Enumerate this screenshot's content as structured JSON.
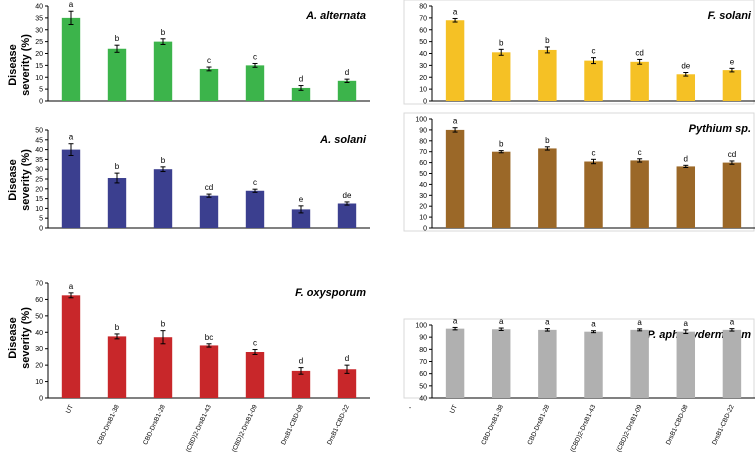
{
  "figure": {
    "ylabel_line1": "Disease",
    "ylabel_line2": "severity (%)",
    "categories": [
      "UT",
      "CBD-DrsB1-38",
      "CBD-DrsB1-28",
      "(CBD)2-DrsB1-43",
      "(CBD)2-DrsB1-09",
      "DrsB1-CBD-08",
      "DrsB1-CBD-22"
    ]
  },
  "chart_data": [
    {
      "id": "a-alternata",
      "type": "bar",
      "title": "A. alternata",
      "color": "#3cb44b",
      "categories": [
        "UT",
        "CBD-DrsB1-38",
        "CBD-DrsB1-28",
        "(CBD)2-DrsB1-43",
        "(CBD)2-DrsB1-09",
        "DrsB1-CBD-08",
        "DrsB1-CBD-22"
      ],
      "values": [
        35,
        22,
        25,
        13.5,
        15,
        5.5,
        8.5
      ],
      "errors": [
        2.8,
        1.5,
        1.2,
        0.8,
        0.8,
        1.0,
        0.7
      ],
      "letters": [
        "a",
        "b",
        "b",
        "c",
        "c",
        "d",
        "d"
      ],
      "ylim": [
        0,
        40
      ],
      "yticks": [
        0,
        5,
        10,
        15,
        20,
        25,
        30,
        35,
        40
      ]
    },
    {
      "id": "f-solani",
      "type": "bar",
      "title": "F. solani",
      "color": "#f5c125",
      "categories": [
        "UT",
        "CBD-DrsB1-38",
        "CBD-DrsB1-28",
        "(CBD)2-DrsB1-43",
        "(CBD)2-DrsB1-09",
        "DrsB1-CBD-08",
        "DrsB1-CBD-22"
      ],
      "values": [
        68,
        41,
        43,
        34,
        33,
        22.5,
        26
      ],
      "errors": [
        1.5,
        2.5,
        2.5,
        2.5,
        2.0,
        1.5,
        1.5
      ],
      "letters": [
        "a",
        "b",
        "b",
        "c",
        "cd",
        "de",
        "e"
      ],
      "ylim": [
        0,
        80
      ],
      "yticks": [
        0,
        10,
        20,
        30,
        40,
        50,
        60,
        70,
        80
      ]
    },
    {
      "id": "a-solani",
      "type": "bar",
      "title": "A. solani",
      "color": "#3b3f8f",
      "categories": [
        "UT",
        "CBD-DrsB1-38",
        "CBD-DrsB1-28",
        "(CBD)2-DrsB1-43",
        "(CBD)2-DrsB1-09",
        "DrsB1-CBD-08",
        "DrsB1-CBD-22"
      ],
      "values": [
        40,
        25.5,
        30,
        16.5,
        19,
        9.5,
        12.5
      ],
      "errors": [
        3.0,
        2.5,
        1.2,
        0.8,
        0.8,
        1.8,
        0.8
      ],
      "letters": [
        "a",
        "b",
        "b",
        "cd",
        "c",
        "e",
        "de"
      ],
      "ylim": [
        0,
        50
      ],
      "yticks": [
        0,
        5,
        10,
        15,
        20,
        25,
        30,
        35,
        40,
        45,
        50
      ]
    },
    {
      "id": "pythium",
      "type": "bar",
      "title": "Pythium sp.",
      "color": "#9b6828",
      "categories": [
        "UT",
        "CBD-DrsB1-38",
        "CBD-DrsB1-28",
        "(CBD)2-DrsB1-43",
        "(CBD)2-DrsB1-09",
        "DrsB1-CBD-08",
        "DrsB1-CBD-22"
      ],
      "values": [
        90,
        70,
        73,
        61,
        62,
        56.5,
        60
      ],
      "errors": [
        2.0,
        1.0,
        1.5,
        2.0,
        1.5,
        1.0,
        1.5
      ],
      "letters": [
        "a",
        "b",
        "b",
        "c",
        "c",
        "d",
        "cd"
      ],
      "ylim": [
        0,
        100
      ],
      "yticks": [
        0,
        10,
        20,
        30,
        40,
        50,
        60,
        70,
        80,
        90,
        100
      ]
    },
    {
      "id": "f-oxysporum",
      "type": "bar",
      "title": "F. oxysporum",
      "color": "#c8272a",
      "categories": [
        "UT",
        "CBD-DrsB1-38",
        "CBD-DrsB1-28",
        "(CBD)2-DrsB1-43",
        "(CBD)2-DrsB1-09",
        "DrsB1-CBD-08",
        "DrsB1-CBD-22"
      ],
      "values": [
        62.5,
        37.5,
        37,
        32,
        28,
        16.5,
        17.5
      ],
      "errors": [
        1.5,
        1.5,
        4.0,
        1.0,
        1.5,
        2.0,
        2.5
      ],
      "letters": [
        "a",
        "b",
        "b",
        "bc",
        "c",
        "d",
        "d"
      ],
      "ylim": [
        0,
        70
      ],
      "yticks": [
        0,
        10,
        20,
        30,
        40,
        50,
        60,
        70
      ]
    },
    {
      "id": "p-aphanidermatum",
      "type": "bar",
      "title": "P. aphanydermatum",
      "color": "#b0b0b0",
      "categories": [
        "UT",
        "CBD-DrsB1-38",
        "CBD-DrsB1-28",
        "(CBD)2-DrsB1-43",
        "(CBD)2-DrsB1-09",
        "DrsB1-CBD-08",
        "DrsB1-CBD-22"
      ],
      "values": [
        97,
        96.5,
        96,
        94.5,
        96,
        94.5,
        96
      ],
      "errors": [
        1.0,
        1.0,
        1.0,
        0.8,
        0.8,
        1.5,
        1.0
      ],
      "letters": [
        "a",
        "a",
        "a",
        "a",
        "a",
        "a",
        "a"
      ],
      "ylim": [
        40,
        100
      ],
      "yticks": [
        40,
        50,
        60,
        70,
        80,
        90,
        100
      ],
      "x_axis_extra_label": "-"
    }
  ]
}
